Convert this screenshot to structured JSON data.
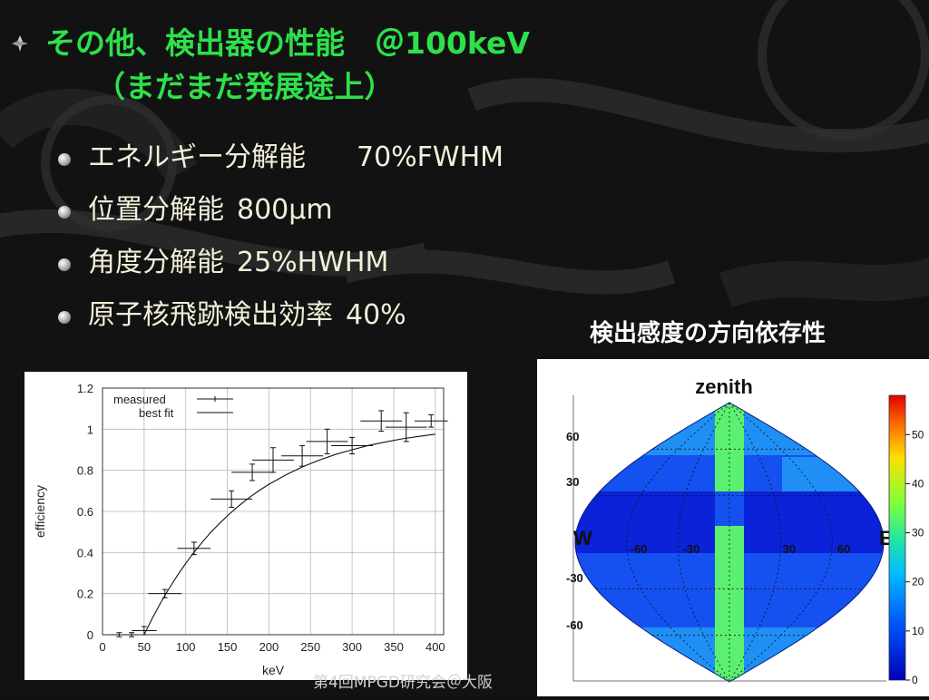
{
  "slide": {
    "title_line1": "その他、検出器の性能　＠100keV",
    "title_line2": "（まだまだ発展途上）",
    "bullets": [
      {
        "label": "エネルギー分解能",
        "value": "70%FWHM"
      },
      {
        "label": "位置分解能",
        "value": "800μm"
      },
      {
        "label": "角度分解能",
        "value": "25%HWHM"
      },
      {
        "label": "原子核飛跡検出効率",
        "value": "40%"
      }
    ],
    "sky_caption": "検出感度の方向依存性",
    "footer": "第4回MPGD研究会＠大阪"
  },
  "colors": {
    "title": "#2ee04a",
    "bullet_text": "#f2f0da",
    "background": "#101010"
  },
  "chart_data": [
    {
      "type": "scatter",
      "title": "",
      "xlabel": "keV",
      "ylabel": "efficiency",
      "xlim": [
        0,
        410
      ],
      "ylim": [
        0,
        1.2
      ],
      "xticks": [
        0,
        50,
        100,
        150,
        200,
        250,
        300,
        350,
        400
      ],
      "yticks": [
        0,
        0.2,
        0.4,
        0.6,
        0.8,
        1,
        1.2
      ],
      "grid": true,
      "legend": "top-left",
      "series": [
        {
          "name": "measured",
          "style": "errorbar",
          "points": [
            {
              "x": 20,
              "y": 0.0,
              "xerr": 10,
              "yerr": 0.01
            },
            {
              "x": 35,
              "y": 0.0,
              "xerr": 8,
              "yerr": 0.01
            },
            {
              "x": 50,
              "y": 0.02,
              "xerr": 15,
              "yerr": 0.02
            },
            {
              "x": 75,
              "y": 0.2,
              "xerr": 20,
              "yerr": 0.02
            },
            {
              "x": 110,
              "y": 0.42,
              "xerr": 20,
              "yerr": 0.03
            },
            {
              "x": 155,
              "y": 0.66,
              "xerr": 25,
              "yerr": 0.04
            },
            {
              "x": 180,
              "y": 0.79,
              "xerr": 25,
              "yerr": 0.04
            },
            {
              "x": 205,
              "y": 0.85,
              "xerr": 25,
              "yerr": 0.06
            },
            {
              "x": 240,
              "y": 0.87,
              "xerr": 25,
              "yerr": 0.05
            },
            {
              "x": 270,
              "y": 0.94,
              "xerr": 25,
              "yerr": 0.06
            },
            {
              "x": 300,
              "y": 0.92,
              "xerr": 25,
              "yerr": 0.04
            },
            {
              "x": 335,
              "y": 1.04,
              "xerr": 25,
              "yerr": 0.05
            },
            {
              "x": 365,
              "y": 1.01,
              "xerr": 25,
              "yerr": 0.07
            },
            {
              "x": 395,
              "y": 1.04,
              "xerr": 20,
              "yerr": 0.03
            }
          ]
        },
        {
          "name": "best fit",
          "style": "line",
          "x": [
            50,
            60,
            70,
            80,
            90,
            100,
            110,
            120,
            130,
            140,
            150,
            160,
            170,
            180,
            190,
            200,
            220,
            240,
            260,
            280,
            300,
            320,
            340,
            360,
            380,
            400
          ],
          "y": [
            0.0,
            0.081,
            0.156,
            0.225,
            0.288,
            0.347,
            0.401,
            0.451,
            0.497,
            0.539,
            0.578,
            0.614,
            0.647,
            0.678,
            0.706,
            0.732,
            0.777,
            0.816,
            0.849,
            0.877,
            0.9,
            0.921,
            0.938,
            0.953,
            0.965,
            0.976
          ]
        }
      ]
    },
    {
      "type": "heatmap",
      "title": "zenith",
      "projection": "sinusoidal-sky-map",
      "side_labels": {
        "left": "W",
        "right": "E"
      },
      "lon_ticks": [
        "-60",
        "-30",
        "30",
        "60"
      ],
      "lat_ticks": [
        "60",
        "30",
        "-30",
        "-60"
      ],
      "colorbar_ticks": [
        0,
        10,
        20,
        30,
        40,
        50
      ],
      "colorbar_max": 58,
      "bands": [
        {
          "region": "center vertical strip",
          "value": 28
        },
        {
          "region": "equator band",
          "value": 5
        },
        {
          "region": "mid latitudes",
          "value": 10
        },
        {
          "region": "upper-right lobe",
          "value": 16
        },
        {
          "region": "polar caps",
          "value": 12
        }
      ]
    }
  ]
}
